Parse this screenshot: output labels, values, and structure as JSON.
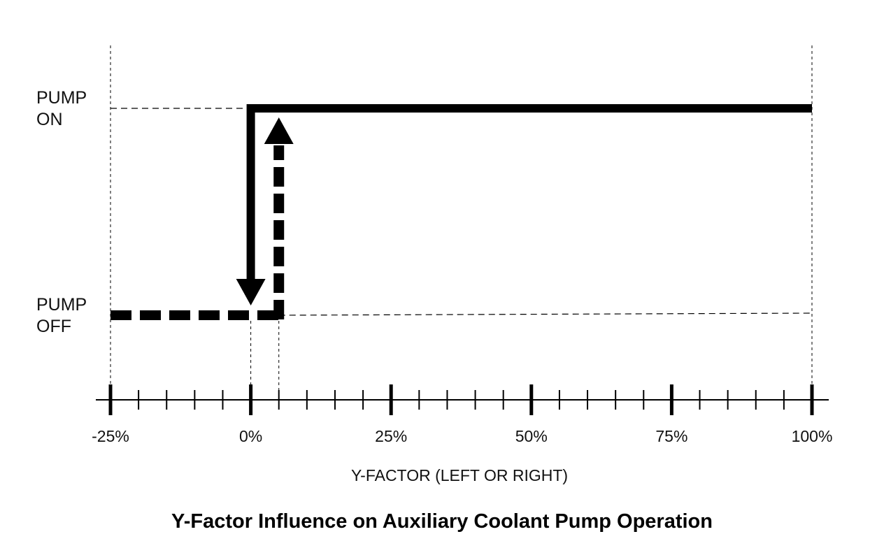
{
  "chart_data": {
    "type": "line",
    "title": "Y-Factor Influence on Auxiliary Coolant Pump Operation",
    "xlabel": "Y-FACTOR (LEFT OR RIGHT)",
    "ylabel": "",
    "xlim": [
      -25,
      100
    ],
    "x_ticks": [
      -25,
      0,
      25,
      50,
      75,
      100
    ],
    "x_tick_labels": [
      "-25%",
      "0%",
      "25%",
      "50%",
      "75%",
      "100%"
    ],
    "x_minor_tick_step": 5,
    "y_states": [
      {
        "value": 1,
        "label_lines": [
          "PUMP",
          "ON"
        ]
      },
      {
        "value": 0,
        "label_lines": [
          "PUMP",
          "OFF"
        ]
      }
    ],
    "series": [
      {
        "style": "solid",
        "points": [
          [
            100,
            1
          ],
          [
            0,
            1
          ],
          [
            0,
            0
          ]
        ],
        "arrow_at_end": true
      },
      {
        "style": "dashed",
        "points": [
          [
            -25,
            0
          ],
          [
            5,
            0
          ],
          [
            5,
            1
          ]
        ],
        "arrow_at_end": true
      }
    ],
    "grid": false,
    "colors": {
      "line": "#000000",
      "guide": "#000000",
      "text": "#111111"
    }
  }
}
